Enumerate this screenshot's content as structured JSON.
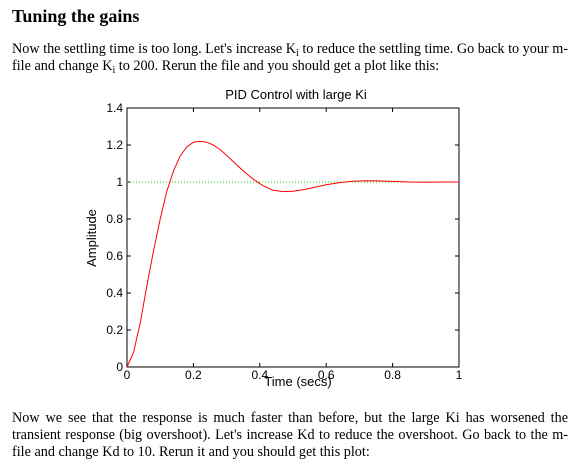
{
  "heading": "Tuning the gains",
  "p1": {
    "part1": "Now the settling time is too long. Let's increase K",
    "sub1": "i",
    "part2": " to reduce the settling time. Go back to your m-file and change K",
    "sub2": "i",
    "part3": " to 200. Rerun the file and you should get a plot like this:"
  },
  "p2": "Now we see that the response is much faster than before, but the large Ki has worsened the transient response (big overshoot). Let's increase Kd to reduce the overshoot. Go back to the m-file and change Kd to 10. Rerun it and you should get this plot:",
  "chart_data": {
    "type": "line",
    "title": "PID Control with large Ki",
    "xlabel": "Time (secs)",
    "ylabel": "Amplitude",
    "xlim": [
      0,
      1
    ],
    "ylim": [
      0,
      1.4
    ],
    "xticks": [
      "0",
      "0.2",
      "0.4",
      "0.6",
      "0.8",
      "1"
    ],
    "yticks": [
      "0",
      "0.2",
      "0.4",
      "0.6",
      "0.8",
      "1",
      "1.2",
      "1.4"
    ],
    "reference_line": {
      "y": 1,
      "style": "dotted",
      "color": "#00cc00"
    },
    "series": [
      {
        "color": "#ff0000",
        "x": [
          0,
          0.02,
          0.04,
          0.06,
          0.08,
          0.1,
          0.12,
          0.14,
          0.16,
          0.18,
          0.2,
          0.22,
          0.24,
          0.26,
          0.28,
          0.3,
          0.32,
          0.35,
          0.38,
          0.41,
          0.44,
          0.47,
          0.5,
          0.53,
          0.56,
          0.6,
          0.64,
          0.68,
          0.72,
          0.76,
          0.8,
          0.85,
          0.9,
          0.95,
          1.0
        ],
        "y": [
          0,
          0.08,
          0.24,
          0.44,
          0.63,
          0.8,
          0.95,
          1.06,
          1.14,
          1.19,
          1.215,
          1.22,
          1.215,
          1.2,
          1.175,
          1.145,
          1.11,
          1.06,
          1.015,
          0.98,
          0.955,
          0.948,
          0.95,
          0.958,
          0.97,
          0.985,
          0.997,
          1.004,
          1.007,
          1.006,
          1.003,
          1.0,
          0.999,
          1.0,
          1.0
        ]
      }
    ]
  }
}
